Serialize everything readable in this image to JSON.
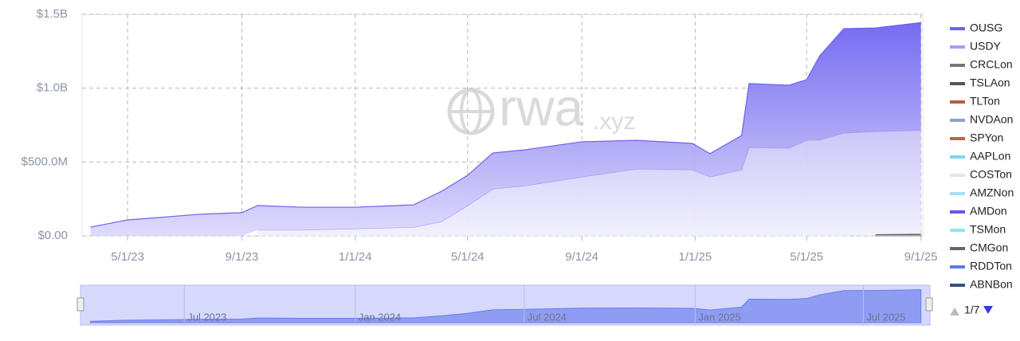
{
  "chart_data": {
    "type": "stacked-area",
    "x": [
      "2023-03-22",
      "2023-05-01",
      "2023-06-04",
      "2023-07-17",
      "2023-09-01",
      "2023-09-18",
      "2023-11-05",
      "2024-01-01",
      "2024-03-04",
      "2024-04-03",
      "2024-05-01",
      "2024-05-28",
      "2024-07-02",
      "2024-09-01",
      "2024-10-30",
      "2024-12-29",
      "2025-01-17",
      "2025-02-20",
      "2025-02-28",
      "2025-04-12",
      "2025-05-01",
      "2025-05-15",
      "2025-06-10",
      "2025-07-14",
      "2025-09-01"
    ],
    "series": [
      {
        "name": "OUSG",
        "color": "#6b63f0",
        "values": [
          59000000,
          108000000,
          124000000,
          146000000,
          157000000,
          165000000,
          154000000,
          145000000,
          151000000,
          205000000,
          205000000,
          243000000,
          243000000,
          238000000,
          194000000,
          178000000,
          157000000,
          232000000,
          432000000,
          426000000,
          410000000,
          569000000,
          707000000,
          701000000,
          729000000
        ]
      },
      {
        "name": "USDY",
        "color": "#a79cf5",
        "values": [
          null,
          null,
          null,
          null,
          null,
          40000000,
          40000000,
          49000000,
          59000000,
          97000000,
          205000000,
          318000000,
          340000000,
          399000000,
          453000000,
          448000000,
          399000000,
          448000000,
          599000000,
          594000000,
          648000000,
          650000000,
          696000000,
          696000000,
          701000000
        ]
      },
      {
        "name": "CRCLon",
        "color": "#777777",
        "values": [
          null,
          null,
          null,
          null,
          null,
          null,
          null,
          null,
          null,
          null,
          null,
          null,
          null,
          null,
          null,
          null,
          null,
          null,
          null,
          null,
          null,
          null,
          null,
          2000000,
          3000000
        ]
      },
      {
        "name": "TSLAon",
        "color": "#555555",
        "values": [
          null,
          null,
          null,
          null,
          null,
          null,
          null,
          null,
          null,
          null,
          null,
          null,
          null,
          null,
          null,
          null,
          null,
          null,
          null,
          null,
          null,
          null,
          null,
          1000000,
          2000000
        ]
      },
      {
        "name": "TLTon",
        "color": "#b0603a",
        "values": [
          null,
          null,
          null,
          null,
          null,
          null,
          null,
          null,
          null,
          null,
          null,
          null,
          null,
          null,
          null,
          null,
          null,
          null,
          null,
          null,
          null,
          null,
          null,
          1000000,
          1000000
        ]
      },
      {
        "name": "NVDAon",
        "color": "#8fa3c8",
        "values": [
          null,
          null,
          null,
          null,
          null,
          null,
          null,
          null,
          null,
          null,
          null,
          null,
          null,
          null,
          null,
          null,
          null,
          null,
          null,
          null,
          null,
          null,
          null,
          1000000,
          2000000
        ]
      },
      {
        "name": "SPYon",
        "color": "#c0663e",
        "values": [
          null,
          null,
          null,
          null,
          null,
          null,
          null,
          null,
          null,
          null,
          null,
          null,
          null,
          null,
          null,
          null,
          null,
          null,
          null,
          null,
          null,
          null,
          null,
          1000000,
          1000000
        ]
      },
      {
        "name": "AAPLon",
        "color": "#7fd6e8",
        "values": [
          null,
          null,
          null,
          null,
          null,
          null,
          null,
          null,
          null,
          null,
          null,
          null,
          null,
          null,
          null,
          null,
          null,
          null,
          null,
          null,
          null,
          null,
          null,
          1000000,
          1000000
        ]
      },
      {
        "name": "COSTon",
        "color": "#e4e4e4",
        "values": [
          null,
          null,
          null,
          null,
          null,
          null,
          null,
          null,
          null,
          null,
          null,
          null,
          null,
          null,
          null,
          null,
          null,
          null,
          null,
          null,
          null,
          null,
          null,
          500000,
          500000
        ]
      },
      {
        "name": "AMZNon",
        "color": "#a6e1f0",
        "values": [
          null,
          null,
          null,
          null,
          null,
          null,
          null,
          null,
          null,
          null,
          null,
          null,
          null,
          null,
          null,
          null,
          null,
          null,
          null,
          null,
          null,
          null,
          null,
          500000,
          1000000
        ]
      },
      {
        "name": "AMDon",
        "color": "#6159e8",
        "values": [
          null,
          null,
          null,
          null,
          null,
          null,
          null,
          null,
          null,
          null,
          null,
          null,
          null,
          null,
          null,
          null,
          null,
          null,
          null,
          null,
          null,
          null,
          null,
          500000,
          500000
        ]
      },
      {
        "name": "TSMon",
        "color": "#8ee6ee",
        "values": [
          null,
          null,
          null,
          null,
          null,
          null,
          null,
          null,
          null,
          null,
          null,
          null,
          null,
          null,
          null,
          null,
          null,
          null,
          null,
          null,
          null,
          null,
          null,
          500000,
          500000
        ]
      },
      {
        "name": "CMGon",
        "color": "#666666",
        "values": [
          null,
          null,
          null,
          null,
          null,
          null,
          null,
          null,
          null,
          null,
          null,
          null,
          null,
          null,
          null,
          null,
          null,
          null,
          null,
          null,
          null,
          null,
          null,
          500000,
          500000
        ]
      },
      {
        "name": "RDDTon",
        "color": "#5b7ce8",
        "values": [
          null,
          null,
          null,
          null,
          null,
          null,
          null,
          null,
          null,
          null,
          null,
          null,
          null,
          null,
          null,
          null,
          null,
          null,
          null,
          null,
          null,
          null,
          null,
          500000,
          500000
        ]
      },
      {
        "name": "ABNBon",
        "color": "#3d4c7a",
        "values": [
          null,
          null,
          null,
          null,
          null,
          null,
          null,
          null,
          null,
          null,
          null,
          null,
          null,
          null,
          null,
          null,
          null,
          null,
          null,
          null,
          null,
          null,
          null,
          500000,
          500000
        ]
      }
    ],
    "xlim": [
      "2023-03-13",
      "2025-09-03"
    ],
    "xticks": [
      {
        "value": "2023-05-01",
        "label": "5/1/23"
      },
      {
        "value": "2023-09-01",
        "label": "9/1/23"
      },
      {
        "value": "2024-01-01",
        "label": "1/1/24"
      },
      {
        "value": "2024-05-01",
        "label": "5/1/24"
      },
      {
        "value": "2024-09-01",
        "label": "9/1/24"
      },
      {
        "value": "2025-01-01",
        "label": "1/1/25"
      },
      {
        "value": "2025-05-01",
        "label": "5/1/25"
      },
      {
        "value": "2025-09-01",
        "label": "9/1/25"
      }
    ],
    "ylim": [
      0,
      1500000000
    ],
    "yticks": [
      {
        "value": 0,
        "label": "$0.00"
      },
      {
        "value": 500000000,
        "label": "$500.0M"
      },
      {
        "value": 1000000000,
        "label": "$1.0B"
      },
      {
        "value": 1500000000,
        "label": "$1.5B"
      }
    ],
    "grid": true,
    "legend": "right",
    "legend_page": "1/7",
    "watermark": {
      "main": "rwa",
      "suffix": ".xyz"
    },
    "navigator": {
      "xticks": [
        {
          "value": "2023-07-01",
          "label": "Jul 2023"
        },
        {
          "value": "2024-01-01",
          "label": "Jan 2024"
        },
        {
          "value": "2024-07-01",
          "label": "Jul 2024"
        },
        {
          "value": "2025-01-01",
          "label": "Jan 2025"
        },
        {
          "value": "2025-07-01",
          "label": "Jul 2025"
        }
      ]
    }
  }
}
